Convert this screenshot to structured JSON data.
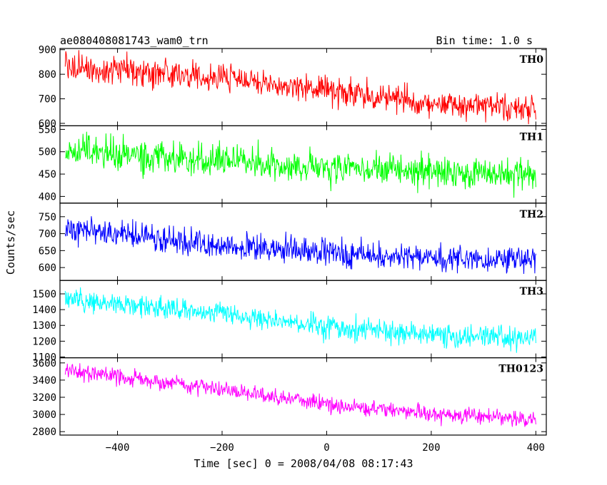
{
  "header": {
    "title": "ae080408081743_wam0_trn",
    "bin_time": "Bin time: 1.0 s"
  },
  "chart_data": {
    "type": "line",
    "title": "ae080408081743_wam0_trn",
    "subtitle": "Bin time: 1.0 s",
    "xlabel": "Time [sec] 0 = 2008/04/08 08:17:43",
    "ylabel": "Counts/sec",
    "xlim": [
      -510,
      420
    ],
    "x_ticks": [
      -400,
      -200,
      0,
      200,
      400
    ],
    "x_tick_labels": [
      "−400",
      "−200",
      "0",
      "200",
      "400"
    ],
    "x_range": [
      -500,
      400
    ],
    "grid": false,
    "panels": [
      {
        "label": "TH0",
        "color": "#ff0000",
        "ylim": [
          590,
          905
        ],
        "y_ticks": [
          600,
          700,
          800,
          900
        ],
        "trend": [
          [
            -500,
            830
          ],
          [
            -400,
            815
          ],
          [
            -200,
            785
          ],
          [
            0,
            730
          ],
          [
            200,
            685
          ],
          [
            400,
            655
          ]
        ],
        "noise": 38
      },
      {
        "label": "TH1",
        "color": "#00ff00",
        "ylim": [
          385,
          558
        ],
        "y_ticks": [
          400,
          450,
          500,
          550
        ],
        "trend": [
          [
            -500,
            500
          ],
          [
            -400,
            495
          ],
          [
            -200,
            480
          ],
          [
            0,
            465
          ],
          [
            200,
            455
          ],
          [
            400,
            448
          ]
        ],
        "noise": 25
      },
      {
        "label": "TH2",
        "color": "#0000ff",
        "ylim": [
          562,
          790
        ],
        "y_ticks": [
          600,
          650,
          700,
          750
        ],
        "trend": [
          [
            -500,
            715
          ],
          [
            -400,
            700
          ],
          [
            -200,
            665
          ],
          [
            0,
            645
          ],
          [
            200,
            630
          ],
          [
            400,
            622
          ]
        ],
        "noise": 28
      },
      {
        "label": "TH3",
        "color": "#00ffff",
        "ylim": [
          1095,
          1585
        ],
        "y_ticks": [
          1100,
          1200,
          1300,
          1400,
          1500
        ],
        "trend": [
          [
            -500,
            1470
          ],
          [
            -400,
            1440
          ],
          [
            -200,
            1370
          ],
          [
            0,
            1290
          ],
          [
            200,
            1240
          ],
          [
            400,
            1215
          ]
        ],
        "noise": 50
      },
      {
        "label": "TH0123",
        "color": "#ff00ff",
        "ylim": [
          2760,
          3660
        ],
        "y_ticks": [
          2800,
          3000,
          3200,
          3400,
          3600
        ],
        "trend": [
          [
            -500,
            3520
          ],
          [
            -400,
            3440
          ],
          [
            -200,
            3290
          ],
          [
            0,
            3120
          ],
          [
            200,
            3000
          ],
          [
            400,
            2950
          ]
        ],
        "noise": 65
      }
    ]
  }
}
